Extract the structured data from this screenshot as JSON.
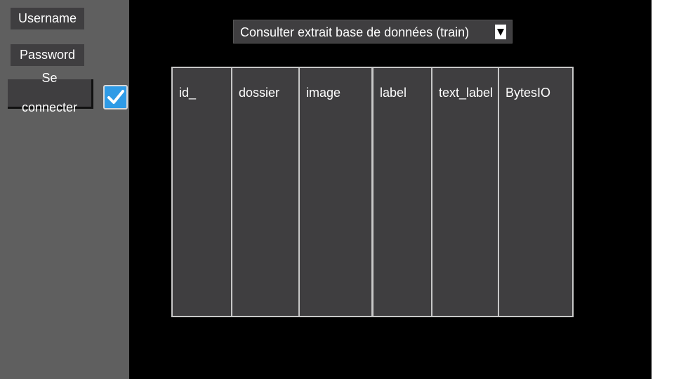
{
  "sidebar": {
    "username_label": "Username",
    "password_label": "Password",
    "login_line1": "Se",
    "login_line2": "connecter",
    "checkbox_checked": true
  },
  "main": {
    "dropdown_selected": "Consulter extrait base de données (train)",
    "dropdown_arrow_icon": "triangle-down-icon",
    "table": {
      "columns": [
        "id_",
        "dossier",
        "image",
        "label",
        "text_label",
        "BytesIO"
      ],
      "rows": []
    }
  },
  "colors": {
    "sidebar_bg": "#5f5f5f",
    "main_bg": "#000000",
    "control_bg": "#3f3e40",
    "checkbox_blue": "#2f9be6"
  }
}
